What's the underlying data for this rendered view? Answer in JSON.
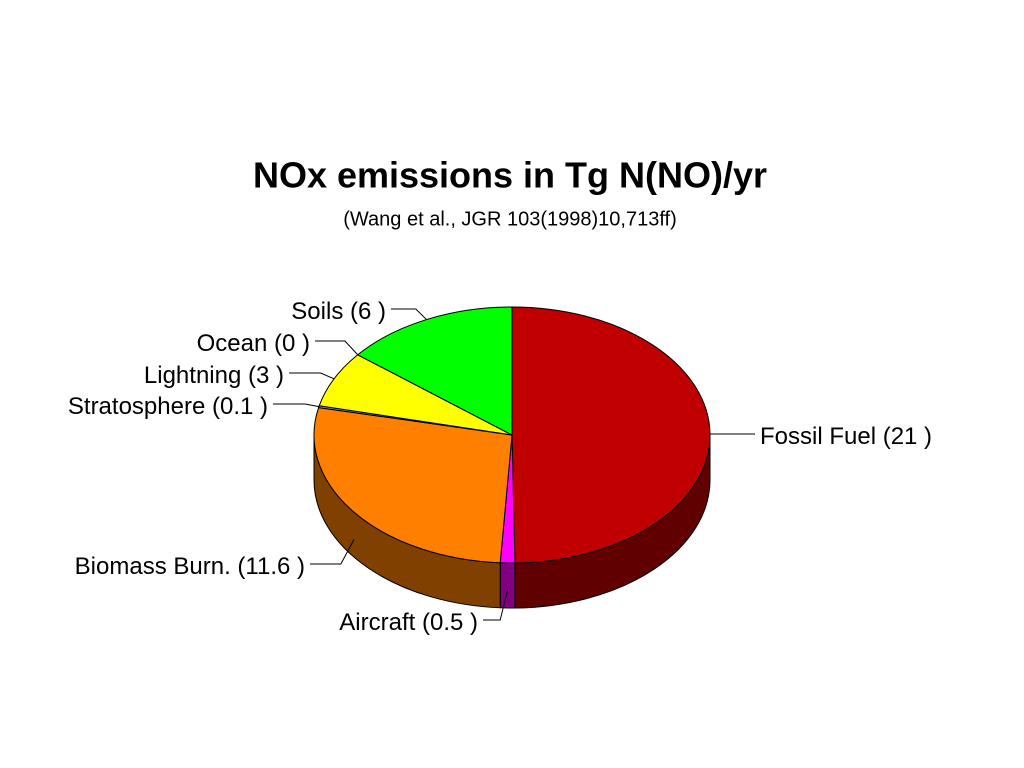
{
  "chart_data": {
    "type": "pie3d",
    "title": "NOx emissions in Tg N(NO)/yr",
    "subtitle": "(Wang et al., JGR 103(1998)10,713ff)",
    "categories": [
      "Fossil Fuel",
      "Aircraft",
      "Biomass Burn.",
      "Stratosphere",
      "Lightning",
      "Ocean",
      "Soils"
    ],
    "values": [
      21,
      0.5,
      11.6,
      0.1,
      3,
      0,
      6
    ],
    "value_labels": [
      "(21 )",
      "(0.5 )",
      "(11.6 )",
      "(0.1 )",
      "(3 )",
      "(0 )",
      "(6 )"
    ],
    "colors": [
      "#c00000",
      "#ff00ff",
      "#ff8000",
      "#8080ff",
      "#ffff00",
      "#00ffff",
      "#00ff00"
    ]
  }
}
